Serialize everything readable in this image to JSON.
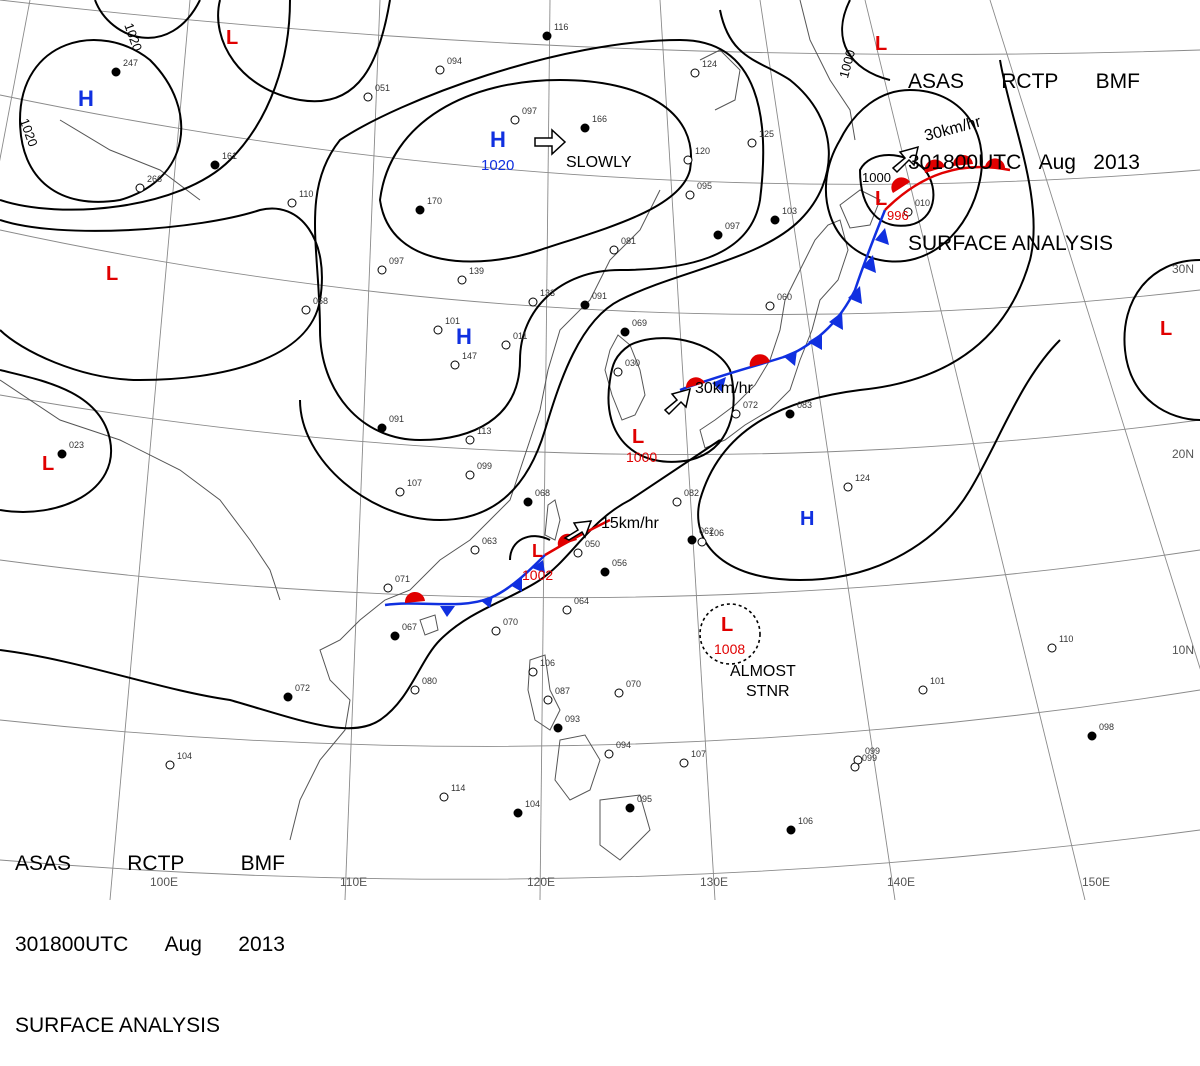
{
  "header": {
    "line1": [
      "ASAS",
      "RCTP",
      "BMF"
    ],
    "line2": [
      "301800UTC",
      "Aug",
      "2013"
    ],
    "line3": "SURFACE ANALYSIS"
  },
  "pressure_centers": [
    {
      "type": "H",
      "label": "H",
      "value": "1020",
      "color": "#1030e0"
    },
    {
      "type": "H",
      "label": "H",
      "value": "",
      "color": "#1030e0"
    },
    {
      "type": "H",
      "label": "H",
      "value": "",
      "color": "#1030e0"
    },
    {
      "type": "H",
      "label": "H",
      "value": "",
      "color": "#1030e0"
    },
    {
      "type": "L",
      "label": "L",
      "value": "1000",
      "color": "#e00000"
    },
    {
      "type": "L",
      "label": "L",
      "value": "1002",
      "color": "#e00000"
    },
    {
      "type": "L",
      "label": "L",
      "value": "1008",
      "color": "#e00000"
    },
    {
      "type": "L",
      "label": "L",
      "value": "996",
      "color": "#e00000"
    },
    {
      "type": "L",
      "label": "L",
      "value": "",
      "color": "#e00000"
    }
  ],
  "isobar_labels": [
    "1020",
    "1020",
    "1000",
    "1000"
  ],
  "motion_labels": [
    "SLOWLY",
    "30km/hr",
    "30km/hr",
    "15km/hr"
  ],
  "stnr_label": [
    "ALMOST",
    "STNR"
  ],
  "lat_labels": [
    "30N",
    "20N",
    "10N"
  ],
  "lon_labels": [
    "100E",
    "110E",
    "120E",
    "130E",
    "140E",
    "150E"
  ],
  "station_samples": [
    "166",
    "120",
    "095",
    "097",
    "081",
    "133",
    "091",
    "139",
    "147",
    "091",
    "099",
    "107",
    "068",
    "063",
    "050",
    "056",
    "064",
    "071",
    "067",
    "070",
    "082",
    "062",
    "106",
    "080",
    "072",
    "104",
    "114",
    "104",
    "106",
    "087",
    "093",
    "070",
    "094",
    "095",
    "107",
    "099",
    "106",
    "124",
    "101",
    "098",
    "110",
    "099",
    "069",
    "030",
    "072",
    "083",
    "060",
    "010",
    "103",
    "125",
    "124",
    "116",
    "094",
    "051",
    "247",
    "266",
    "110",
    "170",
    "097",
    "058",
    "023",
    "101",
    "113",
    "161",
    "011",
    "097"
  ],
  "colors": {
    "high": "#1030e0",
    "low": "#e00000",
    "cold_front": "#1030e0",
    "warm_front": "#e00000",
    "isobar": "#000000",
    "grid": "#888888",
    "coast": "#555555"
  }
}
